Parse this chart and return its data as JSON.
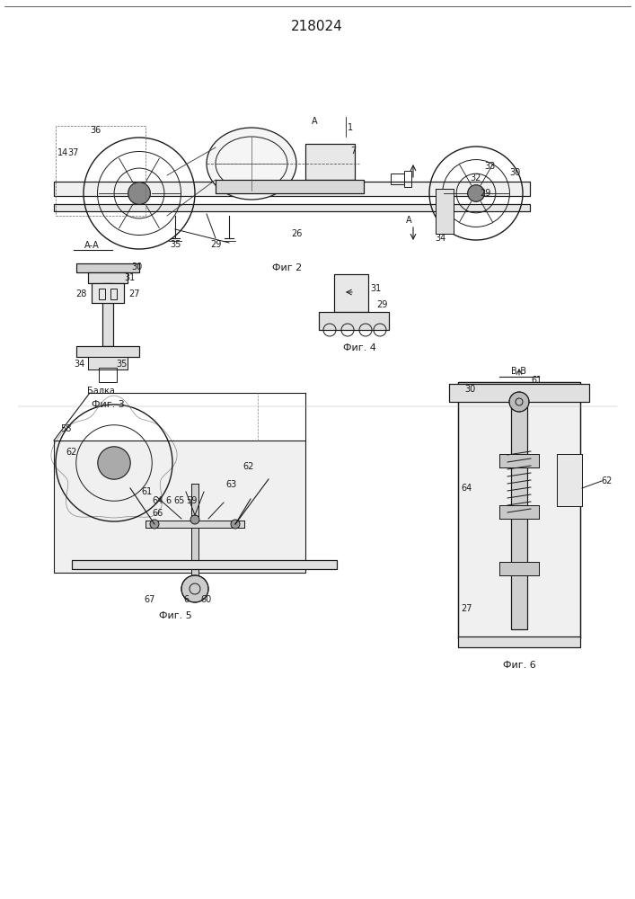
{
  "title": "218024",
  "title_fontsize": 11,
  "bg_color": "#ffffff",
  "line_color": "#1a1a1a",
  "fig2_label": "Фиг 2",
  "fig3_label": "Фиг. 3",
  "fig4_label": "Фиг. 4",
  "fig5_label": "Фиг. 5",
  "fig6_label": "Фиг. 6",
  "aa_label": "А-А",
  "balka_label": "Балка"
}
